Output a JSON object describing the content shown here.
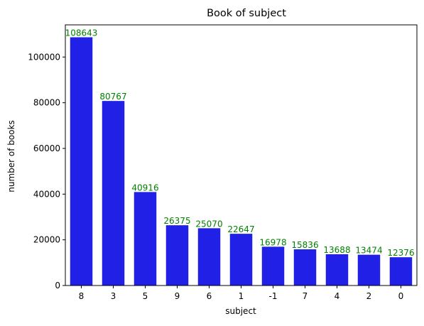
{
  "chart_data": {
    "type": "bar",
    "title": "Book of subject",
    "xlabel": "subject",
    "ylabel": "number of books",
    "categories": [
      "8",
      "3",
      "5",
      "9",
      "6",
      "1",
      "-1",
      "7",
      "4",
      "2",
      "0"
    ],
    "values": [
      108643,
      80767,
      40916,
      26375,
      25070,
      22647,
      16978,
      15836,
      13688,
      13474,
      12376
    ],
    "data_labels": [
      "108643",
      "80767",
      "40916",
      "26375",
      "25070",
      "22647",
      "16978",
      "15836",
      "13688",
      "13474",
      "12376"
    ],
    "ylim": [
      0,
      114075
    ],
    "yticks": [
      0,
      20000,
      40000,
      60000,
      80000,
      100000
    ],
    "ytick_labels": [
      "0",
      "20000",
      "40000",
      "60000",
      "80000",
      "100000"
    ],
    "grid": false,
    "legend": "none",
    "colors": {
      "bar": "#2020e6",
      "data_label": "#008000",
      "axis": "#000000",
      "text": "#000000"
    }
  }
}
